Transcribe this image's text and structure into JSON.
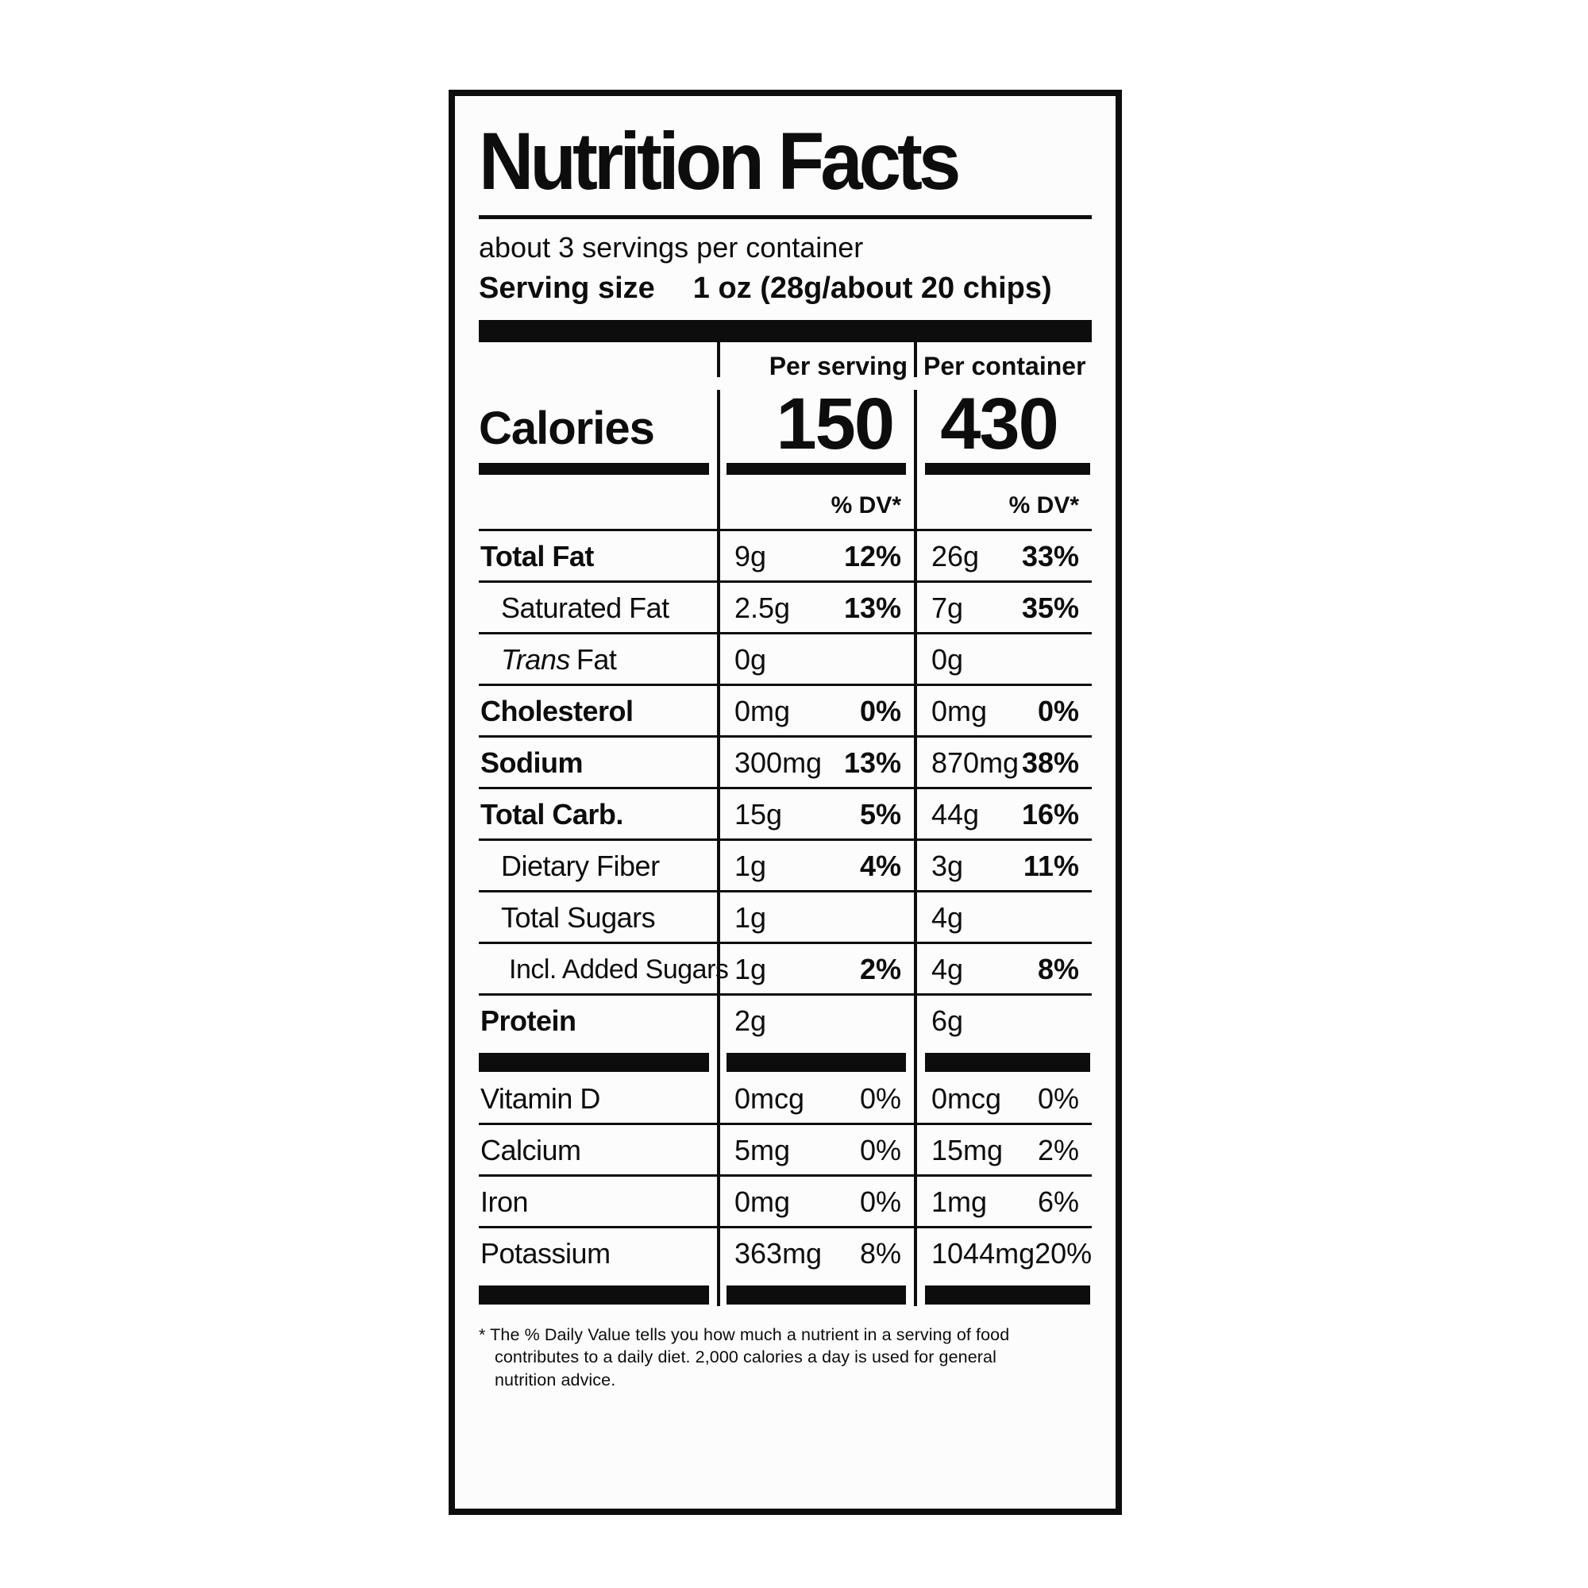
{
  "label": {
    "title": "Nutrition Facts",
    "servings_per_container": "about 3 servings per container",
    "serving_size_label": "Serving size",
    "serving_size_value": "1 oz (28g/about 20 chips)",
    "calories": {
      "word": "Calories",
      "serving_header": "Per serving",
      "serving_value": "150",
      "container_header": "Per container",
      "container_value": "430",
      "dv_header_serving": "% DV*",
      "dv_header_container": "% DV*"
    },
    "nutrients": [
      {
        "name": "Total Fat",
        "serving_amount": "9g",
        "serving_dv": "12%",
        "container_amount": "26g",
        "container_dv": "33%"
      },
      {
        "name": "Saturated Fat",
        "serving_amount": "2.5g",
        "serving_dv": "13%",
        "container_amount": "7g",
        "container_dv": "35%"
      },
      {
        "name_italic": "Trans",
        "name": "Fat",
        "serving_amount": "0g",
        "container_amount": "0g"
      },
      {
        "name": "Cholesterol",
        "serving_amount": "0mg",
        "serving_dv": "0%",
        "container_amount": "0mg",
        "container_dv": "0%"
      },
      {
        "name": "Sodium",
        "serving_amount": "300mg",
        "serving_dv": "13%",
        "container_amount": "870mg",
        "container_dv": "38%"
      },
      {
        "name": "Total Carb.",
        "serving_amount": "15g",
        "serving_dv": "5%",
        "container_amount": "44g",
        "container_dv": "16%"
      },
      {
        "name": "Dietary Fiber",
        "serving_amount": "1g",
        "serving_dv": "4%",
        "container_amount": "3g",
        "container_dv": "11%"
      },
      {
        "name": "Total Sugars",
        "serving_amount": "1g",
        "container_amount": "4g"
      },
      {
        "name": "Incl. Added Sugars",
        "serving_amount": "1g",
        "serving_dv": "2%",
        "container_amount": "4g",
        "container_dv": "8%"
      },
      {
        "name": "Protein",
        "serving_amount": "2g",
        "container_amount": "6g"
      }
    ],
    "vitamins": [
      {
        "name": "Vitamin D",
        "serving_amount": "0mcg",
        "serving_dv": "0%",
        "container_amount": "0mcg",
        "container_dv": "0%"
      },
      {
        "name": "Calcium",
        "serving_amount": "5mg",
        "serving_dv": "0%",
        "container_amount": "15mg",
        "container_dv": "2%"
      },
      {
        "name": "Iron",
        "serving_amount": "0mg",
        "serving_dv": "0%",
        "container_amount": "1mg",
        "container_dv": "6%"
      },
      {
        "name": "Potassium",
        "serving_amount": "363mg",
        "serving_dv": "8%",
        "container_amount": "1044mg",
        "container_dv": "20%"
      }
    ],
    "footnote_lines": [
      "* The % Daily Value tells you how much a nutrient in a serving of food",
      "contributes to a daily diet. 2,000 calories a day is used for general",
      "nutrition advice."
    ],
    "ink_color": "#0d0d0d",
    "background_color": "#fcfcfc"
  }
}
